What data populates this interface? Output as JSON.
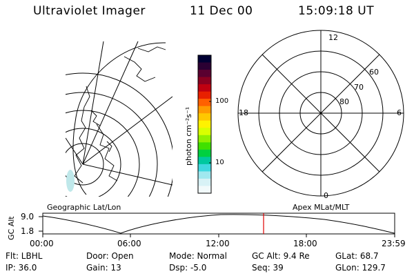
{
  "header": {
    "instrument": "Ultraviolet Imager",
    "date": "11 Dec 00",
    "time": "15:09:18 UT"
  },
  "colorbar": {
    "unit": "photon cm⁻²s⁻¹",
    "ticks": [
      "100",
      "10"
    ],
    "colors": [
      "#000033",
      "#2b0033",
      "#5a0030",
      "#8a0020",
      "#c00010",
      "#e82000",
      "#ff6000",
      "#ff9a00",
      "#ffc800",
      "#fff200",
      "#d8ff00",
      "#90f000",
      "#40e000",
      "#00d040",
      "#00c8a0",
      "#40d8e0",
      "#a0e8ef",
      "#d8f2f6",
      "#f2fafb"
    ]
  },
  "polar": {
    "mlt_labels": {
      "top": "12",
      "left": "18",
      "right": "6",
      "bottom": "0"
    },
    "lat_labels": [
      "60",
      "70",
      "80"
    ]
  },
  "altitude_plot": {
    "axis_title": "GC Alt",
    "y_ticks": [
      "9.0",
      "1.8"
    ],
    "left_caption": "Geographic Lat/Lon",
    "right_caption": "Apex MLat/MLT",
    "x_ticks": [
      "00:00",
      "06:00",
      "12:00",
      "18:00",
      "23:59"
    ],
    "marker_color": "#e00000",
    "line_color": "#000000"
  },
  "info": {
    "flt": "Flt: LBHL",
    "door": "Door: Open",
    "mode": "Mode: Normal",
    "gc_alt": "GC Alt: 9.4 Re",
    "glat": "GLat:  68.7",
    "ip": "IP: 36.0",
    "gain": "Gain: 13",
    "dsp": "Dsp:   -5.0",
    "seq": "Seq: 39",
    "glon": "GLon: 129.7"
  }
}
